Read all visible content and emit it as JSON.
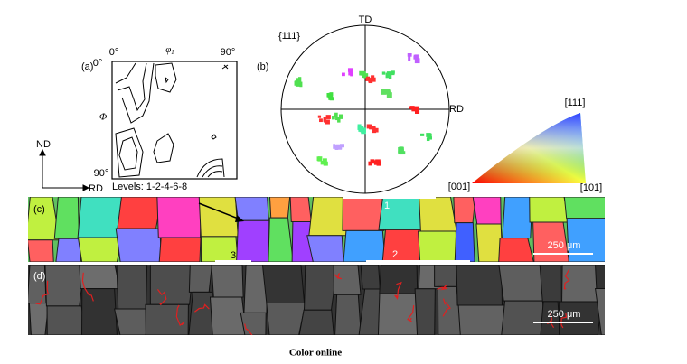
{
  "panel_a": {
    "label": "(a)",
    "phi1_start": "0°",
    "phi1_symbol": "φ",
    "phi1_subscript": "1",
    "phi1_end": "90°",
    "Phi_start": "0°",
    "Phi_symbol": "Φ",
    "Phi_end": "90°",
    "levels": "Levels: 1-2-4-6-8",
    "axis_nd": "ND",
    "axis_rd": "RD"
  },
  "panel_b": {
    "label": "(b)",
    "td": "TD",
    "family": "{111}",
    "rd": "RD"
  },
  "ipf_legend": {
    "top": "[111]",
    "left": "[001]",
    "right": "[101]"
  },
  "panel_c": {
    "label": "(c)",
    "line_1": "1",
    "line_2": "2",
    "line_3": "3",
    "scale": "250 μm"
  },
  "panel_d": {
    "label": "(d)",
    "scale": "250 μm"
  },
  "caption": "Color online"
}
